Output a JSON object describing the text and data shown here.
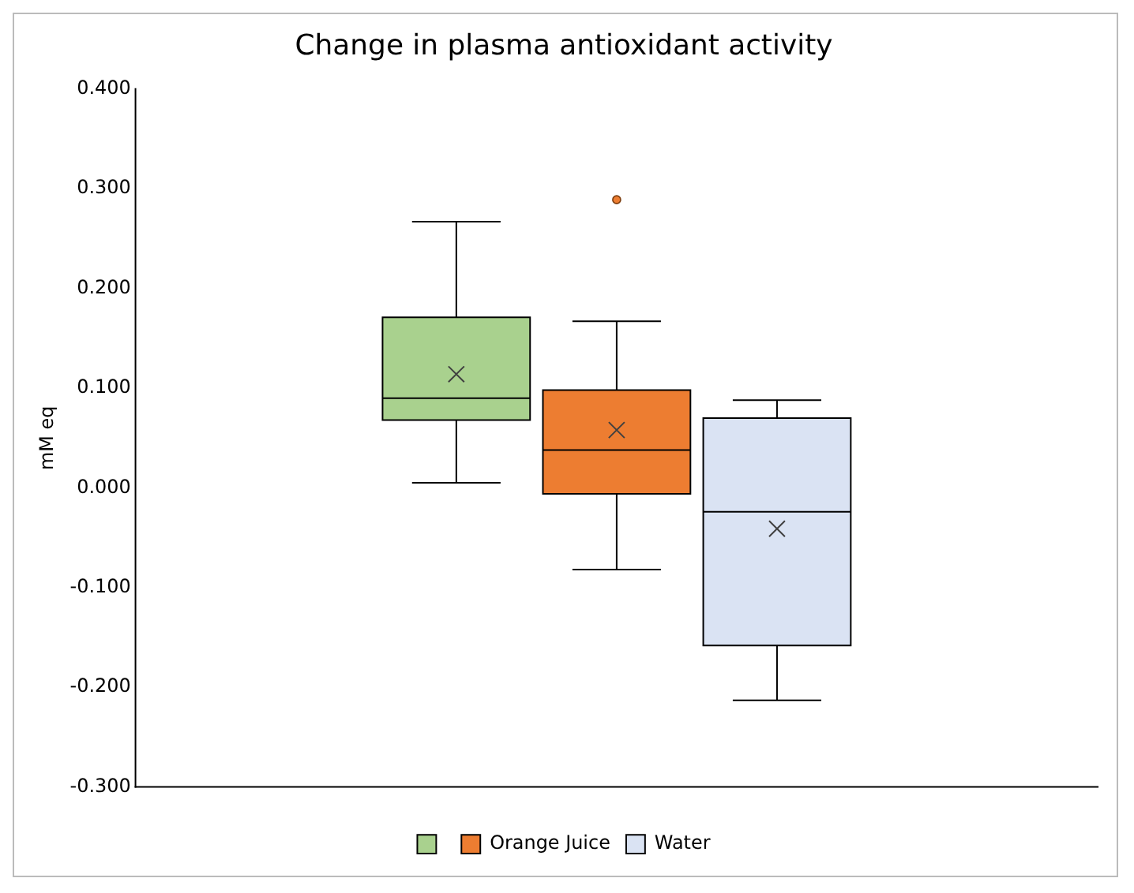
{
  "chart_data": {
    "type": "box",
    "title": "Change in plasma antioxidant activity",
    "ylabel": "mM eq",
    "categories": [
      null
    ],
    "ylim": [
      -0.3,
      0.4
    ],
    "yticks": [
      {
        "value": -0.3,
        "label": "-0.300"
      },
      {
        "value": -0.2,
        "label": "-0.200"
      },
      {
        "value": -0.1,
        "label": "-0.100"
      },
      {
        "value": 0,
        "label": "0.000"
      },
      {
        "value": 0.1,
        "label": "0.100"
      },
      {
        "value": 0.2,
        "label": "0.200"
      },
      {
        "value": 0.3,
        "label": "0.300"
      },
      {
        "value": 0.4,
        "label": "0.400"
      }
    ],
    "grid": false,
    "legend": "bottom",
    "series": [
      {
        "name": null,
        "color": "#a9d18e",
        "boxes": [
          {
            "low": 0.005,
            "q1": 0.068,
            "median": 0.09,
            "q3": 0.171,
            "high": 0.267,
            "mean": 0.114
          }
        ]
      },
      {
        "name": "Orange Juice",
        "color": "#ed7d31",
        "boxes": [
          {
            "low": -0.082,
            "q1": -0.006,
            "median": 0.038,
            "q3": 0.098,
            "high": 0.167,
            "mean": 0.058,
            "outliers": [
              0.289
            ]
          }
        ]
      },
      {
        "name": "Water",
        "color": "#dae3f3",
        "boxes": [
          {
            "low": -0.213,
            "q1": -0.158,
            "median": -0.024,
            "q3": 0.07,
            "high": 0.088,
            "mean": -0.041
          }
        ]
      }
    ]
  }
}
